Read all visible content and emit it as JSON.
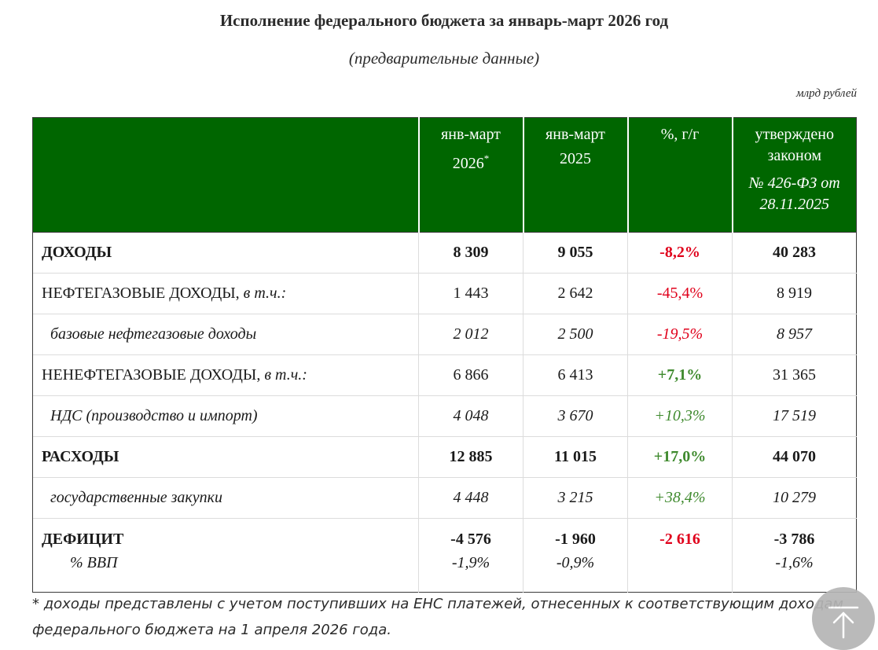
{
  "title": "Исполнение федерального бюджета за январь-март 2026 год",
  "subtitle": "(предварительные данные)",
  "units": "млрд рублей",
  "table": {
    "headers": {
      "col1_line1": "янв-март",
      "col1_line2": "2026",
      "col1_mark": "*",
      "col2_line1": "янв-март",
      "col2_line2": "2025",
      "col3": "%, г/г",
      "col4_line1": "утверждено",
      "col4_line2": "законом",
      "col4_line3": "№ 426-ФЗ от",
      "col4_line4": "28.11.2025"
    },
    "rows": [
      {
        "label": "ДОХОДЫ",
        "label_suffix": "",
        "v2026": "8 309",
        "v2025": "9 055",
        "pct": "-8,2%",
        "law": "40 283"
      },
      {
        "label": "НЕФТЕГАЗОВЫЕ ДОХОДЫ, ",
        "label_suffix": "в т.ч.:",
        "v2026": "1 443",
        "v2025": "2 642",
        "pct": "-45,4%",
        "law": "8 919"
      },
      {
        "label": "базовые нефтегазовые доходы",
        "label_suffix": "",
        "v2026": "2 012",
        "v2025": "2 500",
        "pct": "-19,5%",
        "law": "8 957"
      },
      {
        "label": "НЕНЕФТЕГАЗОВЫЕ ДОХОДЫ, ",
        "label_suffix": "в т.ч.:",
        "v2026": "6 866",
        "v2025": "6 413",
        "pct": "+7,1%",
        "law": "31 365"
      },
      {
        "label": "НДС (производство и импорт)",
        "label_suffix": "",
        "v2026": "4 048",
        "v2025": "3 670",
        "pct": "+10,3%",
        "law": "17 519"
      },
      {
        "label": "РАСХОДЫ",
        "label_suffix": "",
        "v2026": "12 885",
        "v2025": "11 015",
        "pct": "+17,0%",
        "law": "44 070"
      },
      {
        "label": "государственные закупки",
        "label_suffix": "",
        "v2026": "4 448",
        "v2025": "3 215",
        "pct": "+38,4%",
        "law": "10 279"
      },
      {
        "label": "ДЕФИЦИТ",
        "label_suffix": "",
        "v2026": "-4 576",
        "v2025": "-1 960",
        "pct": "-2 616",
        "law": "-3 786"
      },
      {
        "label": "% ВВП",
        "label_suffix": "",
        "v2026": "-1,9%",
        "v2025": "-0,9%",
        "pct": "",
        "law": "-1,6%"
      }
    ]
  },
  "footnote": "* доходы представлены с учетом поступивших на ЕНС платежей, отнесенных к соответствующим доходам федерального бюджета на 1 апреля 2026 года.",
  "colors": {
    "header_bg": "#006600",
    "negative": "#e0001b",
    "positive": "#3f8a2e",
    "scroll_button": "#b5b5b5"
  },
  "icons": {
    "scroll_top": "arrow-up-icon"
  }
}
